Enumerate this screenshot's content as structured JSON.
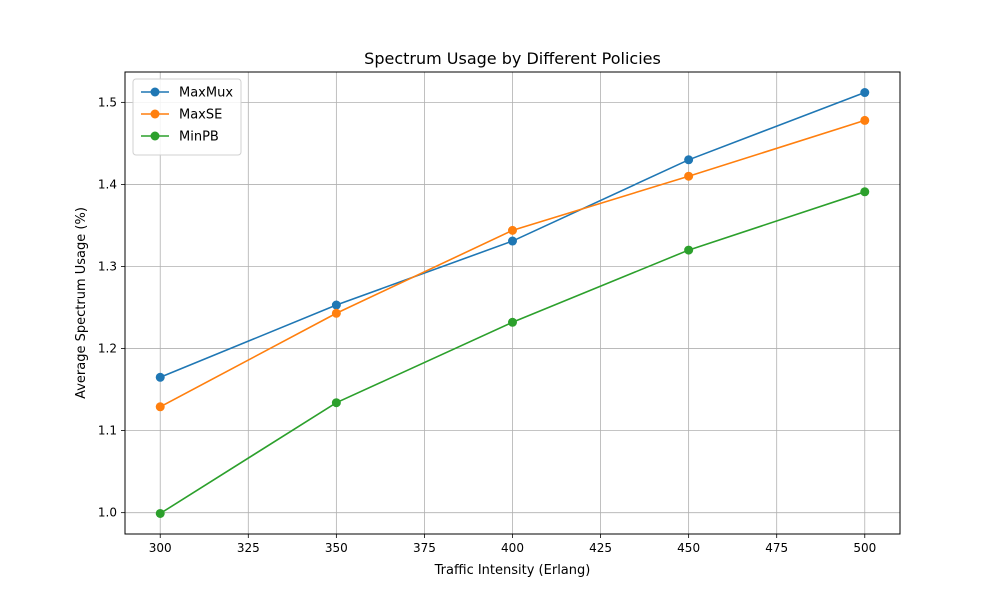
{
  "chart_data": {
    "type": "line",
    "title": "Spectrum Usage by Different Policies",
    "xlabel": "Traffic Intensity (Erlang)",
    "ylabel": "Average Spectrum Usage (%)",
    "x": [
      300,
      350,
      400,
      450,
      500
    ],
    "xlim": [
      290,
      510
    ],
    "ylim": [
      0.974,
      1.537
    ],
    "xticks": [
      300,
      325,
      350,
      375,
      400,
      425,
      450,
      475,
      500
    ],
    "xtick_labels": [
      "300",
      "325",
      "350",
      "375",
      "400",
      "425",
      "450",
      "475",
      "500"
    ],
    "yticks": [
      1.0,
      1.1,
      1.2,
      1.3,
      1.4,
      1.5
    ],
    "ytick_labels": [
      "1.0",
      "1.1",
      "1.2",
      "1.3",
      "1.4",
      "1.5"
    ],
    "grid": true,
    "legend_position": "top-left",
    "series": [
      {
        "name": "MaxMux",
        "color": "#1f77b4",
        "values": [
          1.165,
          1.253,
          1.331,
          1.43,
          1.512
        ]
      },
      {
        "name": "MaxSE",
        "color": "#ff7f0e",
        "values": [
          1.129,
          1.243,
          1.344,
          1.41,
          1.478
        ]
      },
      {
        "name": "MinPB",
        "color": "#2ca02c",
        "values": [
          0.999,
          1.134,
          1.232,
          1.32,
          1.391
        ]
      }
    ]
  }
}
